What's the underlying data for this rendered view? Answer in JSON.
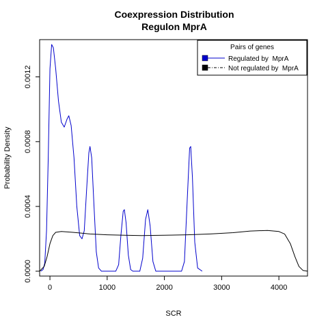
{
  "chart_data": {
    "type": "line",
    "title": "Coexpression Distribution",
    "subtitle": "Regulon MprA",
    "xlabel": "SCR",
    "ylabel": "Probability Density",
    "xlim": [
      -180,
      4500
    ],
    "ylim": [
      -3e-05,
      0.00143
    ],
    "x_ticks": [
      0,
      1000,
      2000,
      3000,
      4000
    ],
    "x_tick_labels": [
      "0",
      "1000",
      "2000",
      "3000",
      "4000"
    ],
    "y_ticks": [
      0,
      0.0004,
      0.0008,
      0.0012
    ],
    "y_tick_labels": [
      "0.0000",
      "0.0004",
      "0.0008",
      "0.0012"
    ],
    "grid": false,
    "legend": {
      "title": "Pairs of genes",
      "placement": "top-right",
      "entries": [
        "Regulated by  MprA",
        "Not regulated by  MprA"
      ]
    },
    "series": [
      {
        "name": "Regulated by  MprA",
        "color": "#0000cc",
        "points": [
          [
            -160,
            0.0
          ],
          [
            -120,
            1e-05
          ],
          [
            -90,
            5e-05
          ],
          [
            -60,
            0.00025
          ],
          [
            -30,
            0.0007
          ],
          [
            0,
            0.00125
          ],
          [
            30,
            0.0014
          ],
          [
            60,
            0.00138
          ],
          [
            100,
            0.00125
          ],
          [
            150,
            0.00105
          ],
          [
            200,
            0.00092
          ],
          [
            250,
            0.00089
          ],
          [
            300,
            0.00094
          ],
          [
            330,
            0.00096
          ],
          [
            370,
            0.0009
          ],
          [
            420,
            0.0007
          ],
          [
            470,
            0.0004
          ],
          [
            520,
            0.00022
          ],
          [
            560,
            0.0002
          ],
          [
            600,
            0.00025
          ],
          [
            640,
            0.0005
          ],
          [
            680,
            0.00073
          ],
          [
            700,
            0.00077
          ],
          [
            730,
            0.0007
          ],
          [
            770,
            0.0004
          ],
          [
            810,
            0.00012
          ],
          [
            850,
            2e-05
          ],
          [
            900,
            0.0
          ],
          [
            1150,
            0.0
          ],
          [
            1200,
            4e-05
          ],
          [
            1240,
            0.00022
          ],
          [
            1280,
            0.00037
          ],
          [
            1300,
            0.00038
          ],
          [
            1330,
            0.0003
          ],
          [
            1370,
            0.0001
          ],
          [
            1410,
            1e-05
          ],
          [
            1450,
            0.0
          ],
          [
            1570,
            0.0
          ],
          [
            1620,
            8e-05
          ],
          [
            1670,
            0.00032
          ],
          [
            1710,
            0.00038
          ],
          [
            1750,
            0.00028
          ],
          [
            1800,
            6e-05
          ],
          [
            1850,
            0.0
          ],
          [
            2300,
            0.0
          ],
          [
            2350,
            6e-05
          ],
          [
            2400,
            0.00045
          ],
          [
            2440,
            0.00076
          ],
          [
            2460,
            0.00077
          ],
          [
            2490,
            0.00058
          ],
          [
            2530,
            0.00018
          ],
          [
            2580,
            2e-05
          ],
          [
            2660,
            0.0
          ]
        ]
      },
      {
        "name": "Not regulated by  MprA",
        "color": "#000000",
        "points": [
          [
            -180,
            0.0
          ],
          [
            -100,
            3e-05
          ],
          [
            -50,
            9e-05
          ],
          [
            0,
            0.00017
          ],
          [
            50,
            0.00022
          ],
          [
            100,
            0.00024
          ],
          [
            200,
            0.000245
          ],
          [
            400,
            0.00024
          ],
          [
            700,
            0.00023
          ],
          [
            1000,
            0.000225
          ],
          [
            1300,
            0.000222
          ],
          [
            1600,
            0.00022
          ],
          [
            2000,
            0.000222
          ],
          [
            2400,
            0.000225
          ],
          [
            2800,
            0.00023
          ],
          [
            3200,
            0.000238
          ],
          [
            3500,
            0.000248
          ],
          [
            3800,
            0.000252
          ],
          [
            4000,
            0.000245
          ],
          [
            4100,
            0.00023
          ],
          [
            4200,
            0.00017
          ],
          [
            4280,
            9e-05
          ],
          [
            4350,
            3e-05
          ],
          [
            4420,
            5e-06
          ],
          [
            4500,
            0.0
          ]
        ]
      }
    ]
  }
}
